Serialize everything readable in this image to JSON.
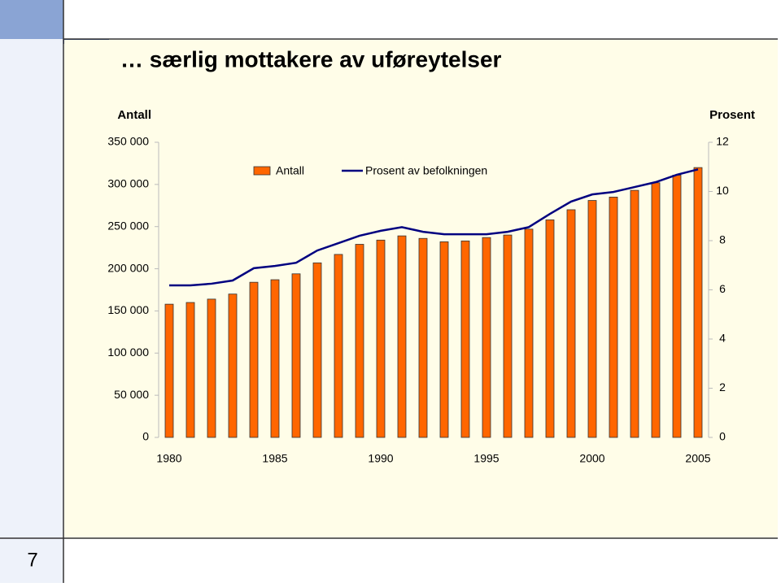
{
  "page_number": "7",
  "chart_data": {
    "type": "bar",
    "title": "… særlig mottakere av uføreytelser",
    "ylabel": "Antall",
    "y2label": "Prosent",
    "x": [
      1980,
      1981,
      1982,
      1983,
      1984,
      1985,
      1986,
      1987,
      1988,
      1989,
      1990,
      1991,
      1992,
      1993,
      1994,
      1995,
      1996,
      1997,
      1998,
      1999,
      2000,
      2001,
      2002,
      2003,
      2004,
      2005
    ],
    "xlim": [
      1979.5,
      2005.5
    ],
    "xticks": [
      1980,
      1985,
      1990,
      1995,
      2000,
      2005
    ],
    "ylim": [
      0,
      350000
    ],
    "yticks": [
      0,
      {
        "value": 50000,
        "label": "50 000"
      },
      {
        "value": 100000,
        "label": "100 000"
      },
      {
        "value": 150000,
        "label": "150 000"
      },
      {
        "value": 200000,
        "label": "200 000"
      },
      {
        "value": 250000,
        "label": "250 000"
      },
      {
        "value": 300000,
        "label": "300 000"
      },
      {
        "value": 350000,
        "label": "350 000"
      }
    ],
    "y2lim": [
      0,
      12
    ],
    "y2ticks": [
      0,
      2,
      4,
      6,
      8,
      10,
      12
    ],
    "legend": "top",
    "series": [
      {
        "name": "Antall",
        "type": "bar",
        "color": "#ff6600",
        "values": [
          158000,
          160000,
          164000,
          170000,
          184000,
          187000,
          194000,
          207000,
          217000,
          229000,
          234000,
          239000,
          236000,
          232000,
          233000,
          237000,
          240000,
          247000,
          258000,
          270000,
          281000,
          285000,
          293000,
          302000,
          311000,
          320000
        ]
      },
      {
        "name": "Prosent av befolkningen",
        "type": "line",
        "color": "#000080",
        "axis": "y2",
        "values": [
          6.18,
          6.18,
          6.25,
          6.38,
          6.88,
          6.97,
          7.1,
          7.6,
          7.9,
          8.2,
          8.4,
          8.55,
          8.36,
          8.26,
          8.26,
          8.26,
          8.36,
          8.55,
          9.09,
          9.59,
          9.88,
          9.98,
          10.18,
          10.38,
          10.68,
          10.9
        ]
      }
    ]
  }
}
